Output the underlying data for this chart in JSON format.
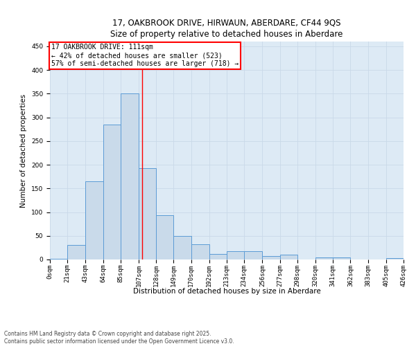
{
  "title_line1": "17, OAKBROOK DRIVE, HIRWAUN, ABERDARE, CF44 9QS",
  "title_line2": "Size of property relative to detached houses in Aberdare",
  "xlabel": "Distribution of detached houses by size in Aberdare",
  "ylabel": "Number of detached properties",
  "bin_edges": [
    0,
    21,
    43,
    64,
    85,
    107,
    128,
    149,
    170,
    192,
    213,
    234,
    256,
    277,
    298,
    320,
    341,
    362,
    383,
    405,
    426
  ],
  "bin_labels": [
    "0sqm",
    "21sqm",
    "43sqm",
    "64sqm",
    "85sqm",
    "107sqm",
    "128sqm",
    "149sqm",
    "170sqm",
    "192sqm",
    "213sqm",
    "234sqm",
    "256sqm",
    "277sqm",
    "298sqm",
    "320sqm",
    "341sqm",
    "362sqm",
    "383sqm",
    "405sqm",
    "426sqm"
  ],
  "bar_heights": [
    2,
    30,
    165,
    285,
    350,
    193,
    93,
    50,
    32,
    12,
    18,
    18,
    8,
    10,
    0,
    5,
    5,
    0,
    0,
    3
  ],
  "bar_color": "#c9daea",
  "bar_edge_color": "#5b9bd5",
  "property_line_x": 111,
  "property_line_color": "red",
  "annotation_text": "17 OAKBROOK DRIVE: 111sqm\n← 42% of detached houses are smaller (523)\n57% of semi-detached houses are larger (718) →",
  "annotation_box_color": "white",
  "annotation_box_edge_color": "red",
  "ylim": [
    0,
    460
  ],
  "yticks": [
    0,
    50,
    100,
    150,
    200,
    250,
    300,
    350,
    400,
    450
  ],
  "grid_color": "#c9d9e8",
  "background_color": "#ddeaf5",
  "footer_text": "Contains HM Land Registry data © Crown copyright and database right 2025.\nContains public sector information licensed under the Open Government Licence v3.0.",
  "title_fontsize": 8.5,
  "axis_label_fontsize": 7.5,
  "tick_fontsize": 6.5,
  "annotation_fontsize": 7,
  "footer_fontsize": 5.5
}
